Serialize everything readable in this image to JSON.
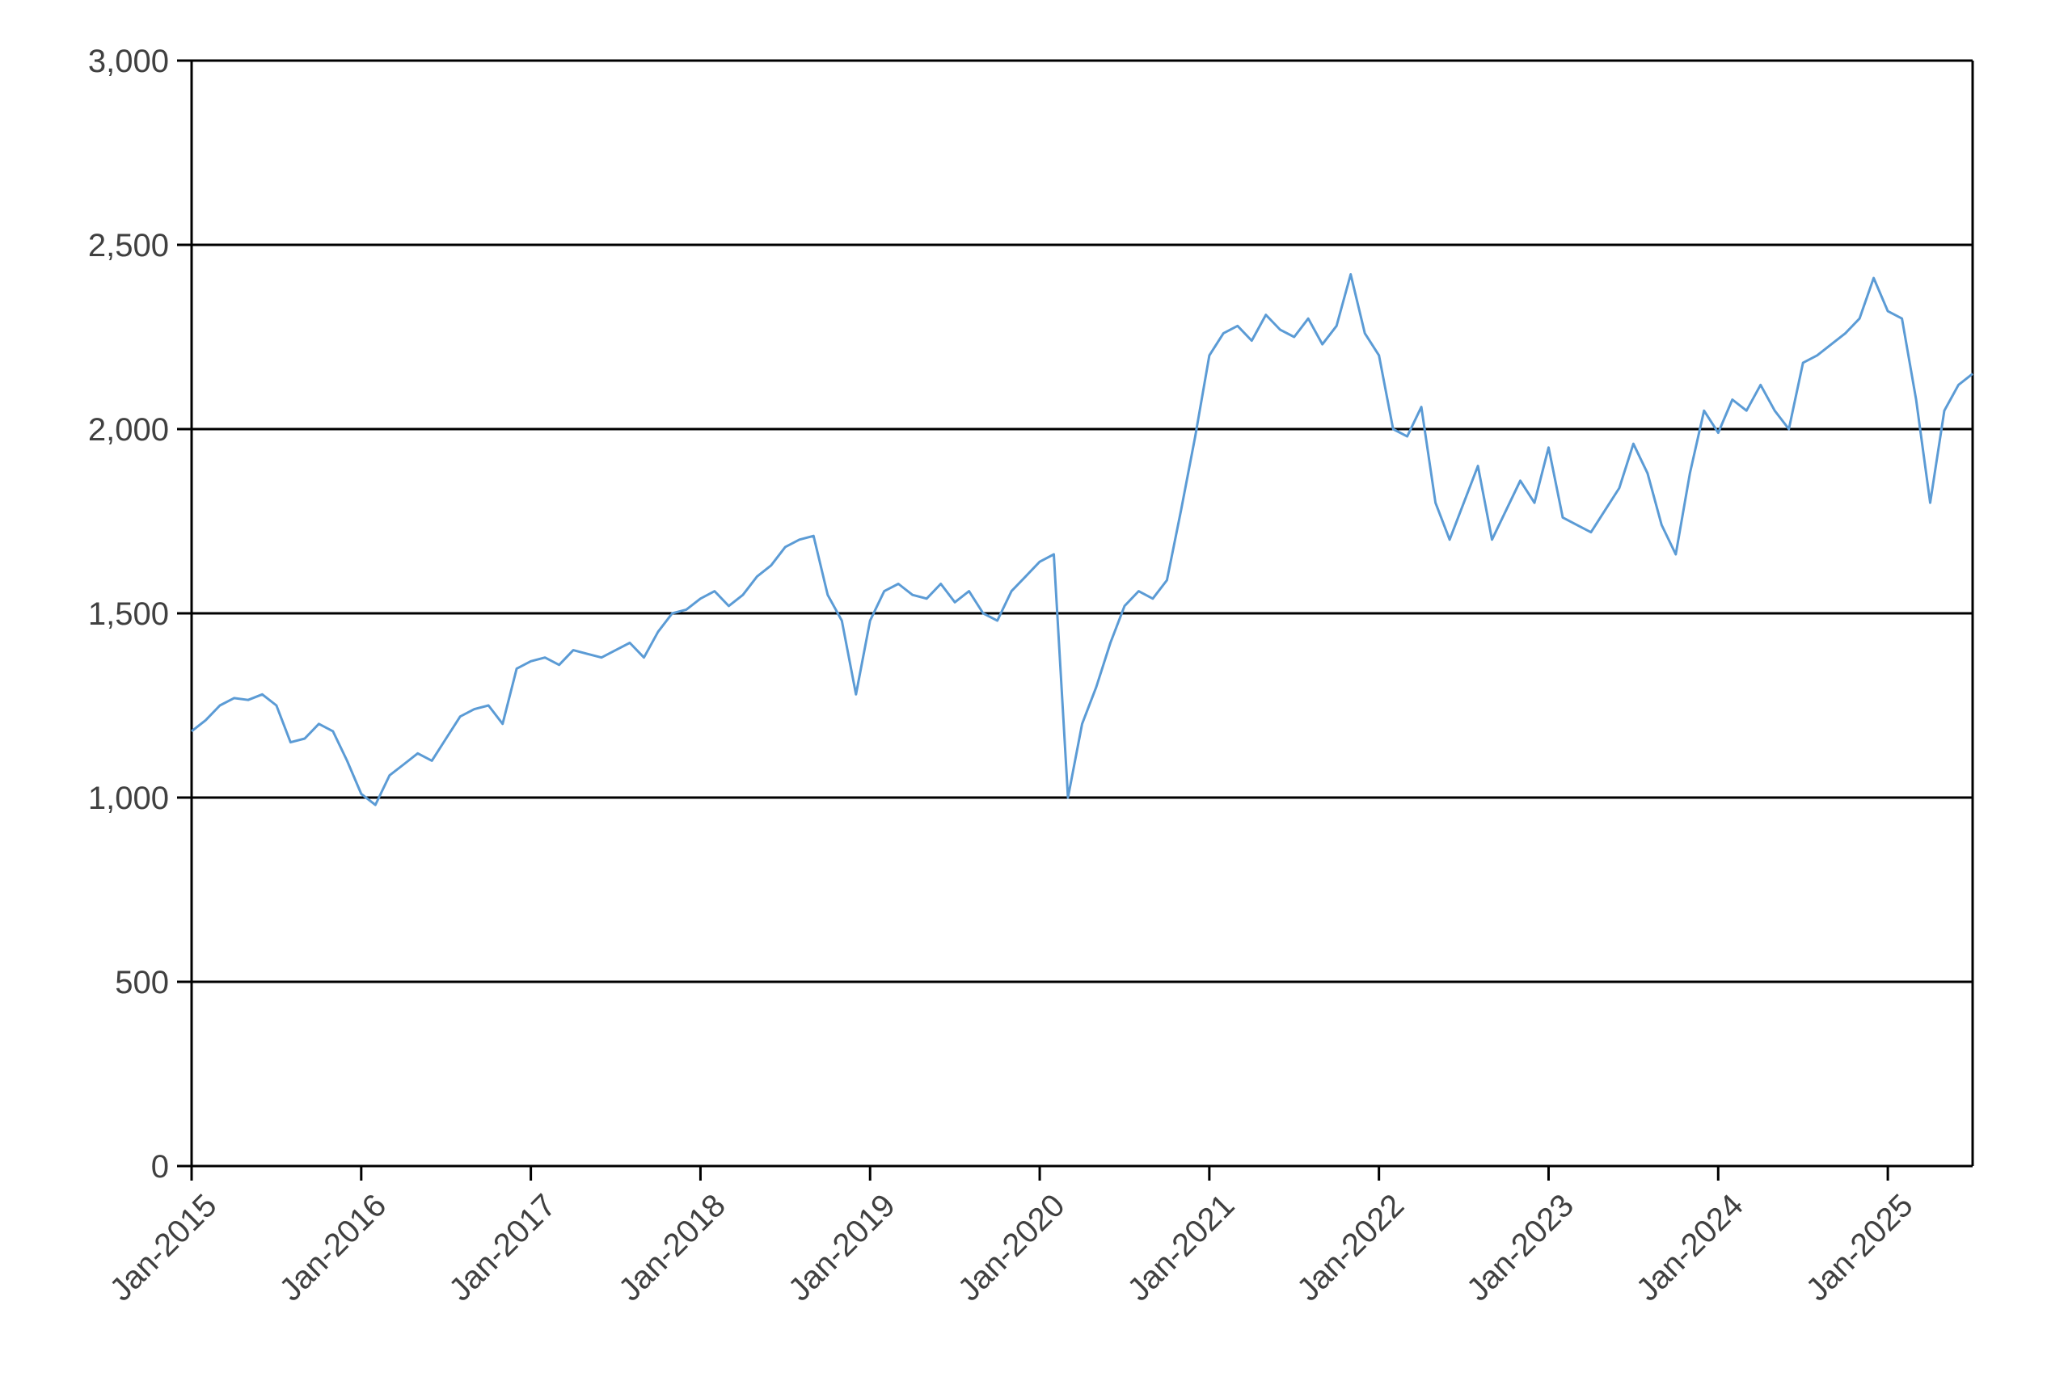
{
  "chart_data": {
    "type": "line",
    "title": "",
    "xlabel": "",
    "ylabel": "",
    "ylim": [
      0,
      3000
    ],
    "xlim": [
      "2015-01",
      "2025-07"
    ],
    "y_ticks": [
      0,
      500,
      1000,
      1500,
      2000,
      2500,
      3000
    ],
    "y_tick_labels": [
      "0",
      "500",
      "1,000",
      "1,500",
      "2,000",
      "2,500",
      "3,000"
    ],
    "x_ticks": [
      "2015-01",
      "2016-01",
      "2017-01",
      "2018-01",
      "2019-01",
      "2020-01",
      "2021-01",
      "2022-01",
      "2023-01",
      "2024-01",
      "2025-01"
    ],
    "x_tick_labels": [
      "Jan-2015",
      "Jan-2016",
      "Jan-2017",
      "Jan-2018",
      "Jan-2019",
      "Jan-2020",
      "Jan-2021",
      "Jan-2022",
      "Jan-2023",
      "Jan-2024",
      "Jan-2025"
    ],
    "grid": "horizontal",
    "legend": "none",
    "line_color": "#5b9bd5",
    "series": [
      {
        "x": [
          "2015-01",
          "2015-02",
          "2015-03",
          "2015-04",
          "2015-05",
          "2015-06",
          "2015-07",
          "2015-08",
          "2015-09",
          "2015-10",
          "2015-11",
          "2015-12",
          "2016-01",
          "2016-02",
          "2016-03",
          "2016-04",
          "2016-05",
          "2016-06",
          "2016-07",
          "2016-08",
          "2016-09",
          "2016-10",
          "2016-11",
          "2016-12",
          "2017-01",
          "2017-02",
          "2017-03",
          "2017-04",
          "2017-05",
          "2017-06",
          "2017-07",
          "2017-08",
          "2017-09",
          "2017-10",
          "2017-11",
          "2017-12",
          "2018-01",
          "2018-02",
          "2018-03",
          "2018-04",
          "2018-05",
          "2018-06",
          "2018-07",
          "2018-08",
          "2018-09",
          "2018-10",
          "2018-11",
          "2018-12",
          "2019-01",
          "2019-02",
          "2019-03",
          "2019-04",
          "2019-05",
          "2019-06",
          "2019-07",
          "2019-08",
          "2019-09",
          "2019-10",
          "2019-11",
          "2019-12",
          "2020-01",
          "2020-02",
          "2020-03",
          "2020-04",
          "2020-05",
          "2020-06",
          "2020-07",
          "2020-08",
          "2020-09",
          "2020-10",
          "2020-11",
          "2020-12",
          "2021-01",
          "2021-02",
          "2021-03",
          "2021-04",
          "2021-05",
          "2021-06",
          "2021-07",
          "2021-08",
          "2021-09",
          "2021-10",
          "2021-11",
          "2021-12",
          "2022-01",
          "2022-02",
          "2022-03",
          "2022-04",
          "2022-05",
          "2022-06",
          "2022-07",
          "2022-08",
          "2022-09",
          "2022-10",
          "2022-11",
          "2022-12",
          "2023-01",
          "2023-02",
          "2023-03",
          "2023-04",
          "2023-05",
          "2023-06",
          "2023-07",
          "2023-08",
          "2023-09",
          "2023-10",
          "2023-11",
          "2023-12",
          "2024-01",
          "2024-02",
          "2024-03",
          "2024-04",
          "2024-05",
          "2024-06",
          "2024-07",
          "2024-08",
          "2024-09",
          "2024-10",
          "2024-11",
          "2024-12",
          "2025-01",
          "2025-02",
          "2025-03",
          "2025-04",
          "2025-05",
          "2025-06",
          "2025-07"
        ],
        "values": [
          1180,
          1210,
          1250,
          1270,
          1265,
          1280,
          1250,
          1150,
          1160,
          1200,
          1180,
          1100,
          1010,
          980,
          1060,
          1090,
          1120,
          1100,
          1160,
          1220,
          1240,
          1250,
          1200,
          1350,
          1370,
          1380,
          1360,
          1400,
          1390,
          1380,
          1400,
          1420,
          1380,
          1450,
          1500,
          1510,
          1540,
          1560,
          1520,
          1550,
          1600,
          1630,
          1680,
          1700,
          1710,
          1550,
          1480,
          1280,
          1480,
          1560,
          1580,
          1550,
          1540,
          1580,
          1530,
          1560,
          1500,
          1480,
          1560,
          1600,
          1640,
          1660,
          1000,
          1200,
          1300,
          1420,
          1520,
          1560,
          1540,
          1590,
          1780,
          1980,
          2200,
          2260,
          2280,
          2240,
          2310,
          2270,
          2250,
          2300,
          2230,
          2280,
          2420,
          2260,
          2200,
          2000,
          1980,
          2060,
          1800,
          1700,
          1800,
          1900,
          1700,
          1780,
          1860,
          1800,
          1950,
          1760,
          1740,
          1720,
          1780,
          1840,
          1960,
          1880,
          1740,
          1660,
          1880,
          2050,
          1990,
          2080,
          2050,
          2120,
          2050,
          2000,
          2180,
          2200,
          2230,
          2260,
          2300,
          2410,
          2320,
          2300,
          2080,
          1800,
          2050,
          2120,
          2150
        ]
      }
    ]
  }
}
